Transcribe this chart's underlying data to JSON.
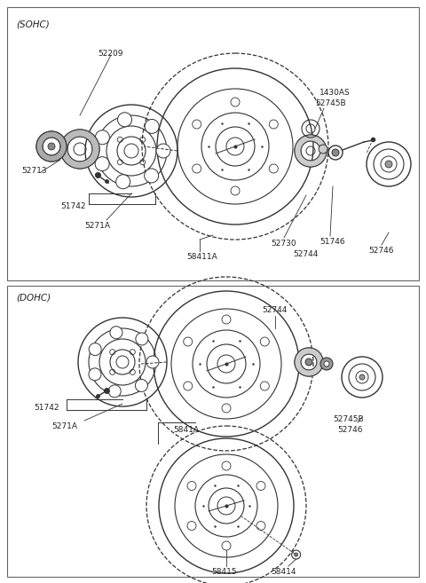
{
  "bg_color": "#ffffff",
  "border_color": "#555555",
  "line_color": "#333333",
  "text_color": "#222222",
  "fig_width": 4.8,
  "fig_height": 6.57,
  "dpi": 100,
  "sohc_label": "(SOHC)",
  "dohc_label": "(DOHC)",
  "sohc_parts": [
    "52209",
    "52713",
    "51742",
    "5271A",
    "58411A",
    "52730",
    "52744",
    "51746",
    "52745B",
    "1430AS",
    "52746"
  ],
  "dohc_parts": [
    "51742",
    "5271A",
    "52744",
    "52745B",
    "52746",
    "5841A",
    "58415",
    "58414"
  ]
}
